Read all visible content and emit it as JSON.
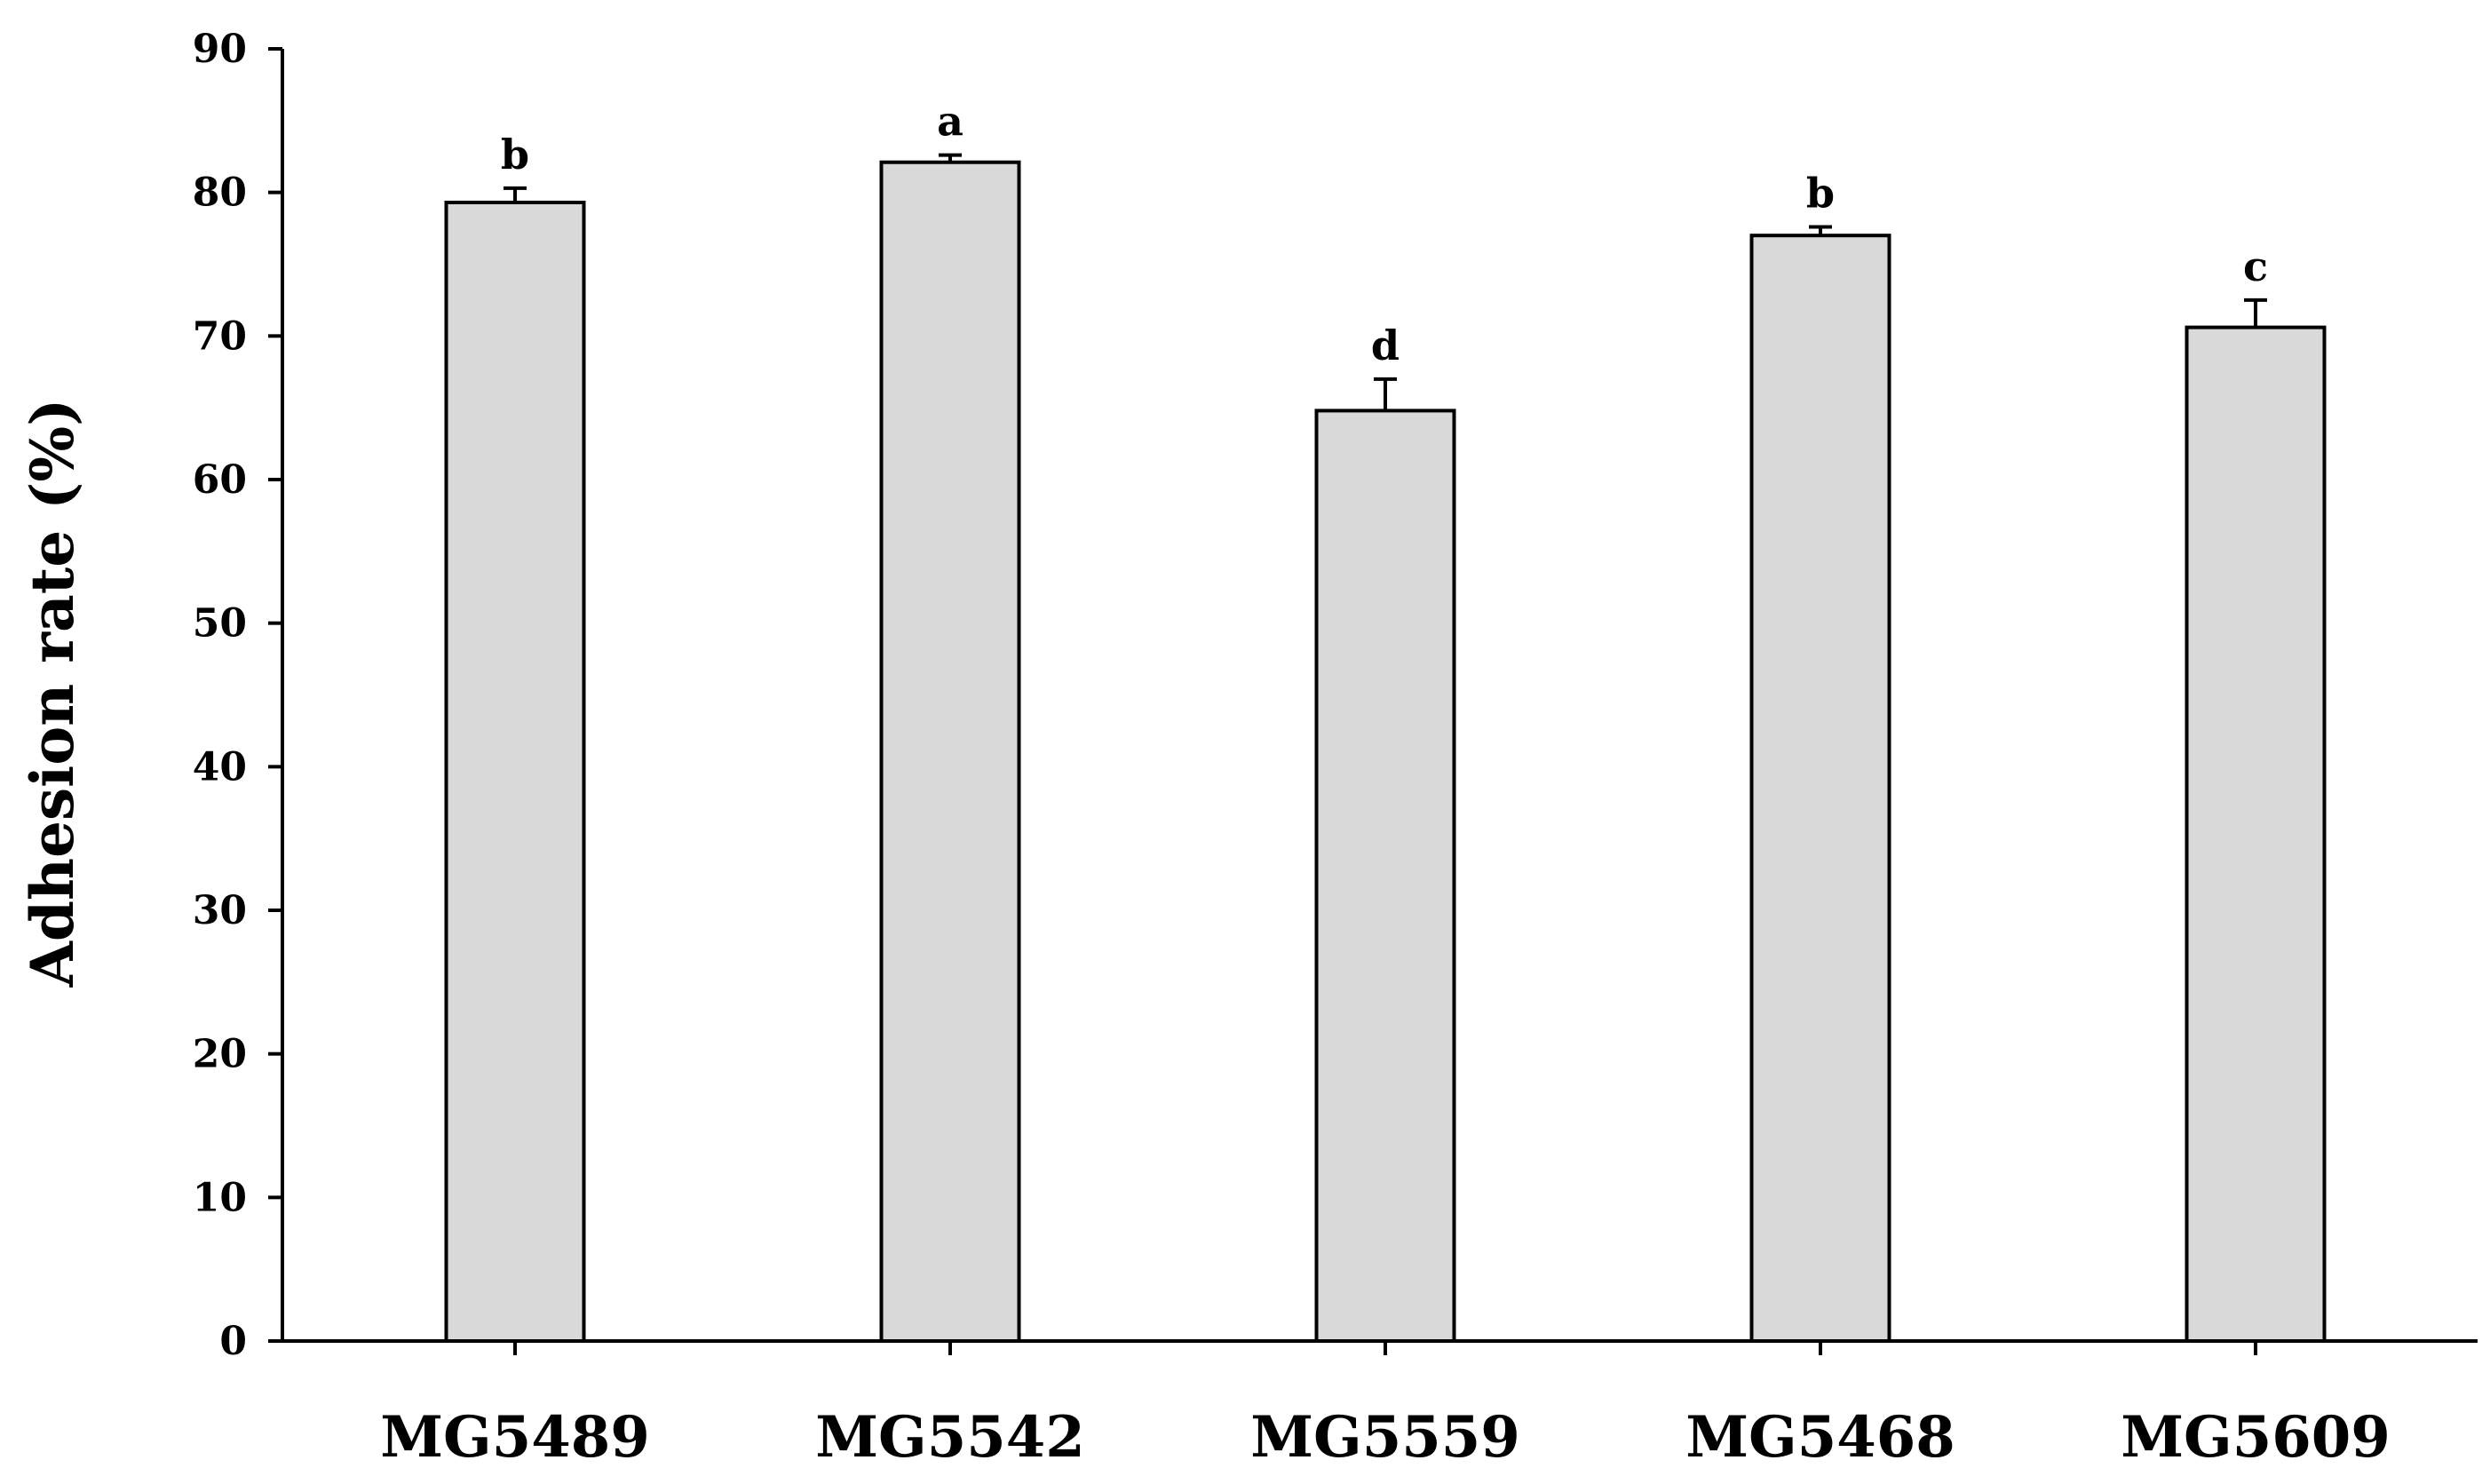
{
  "chart_data": {
    "type": "bar",
    "ylabel": "Adhesion rate (%)",
    "xlabel": "",
    "ylim": [
      0,
      90
    ],
    "yticks": [
      "0",
      "10",
      "20",
      "30",
      "40",
      "50",
      "60",
      "70",
      "80",
      "90"
    ],
    "grid": false,
    "colors": {
      "bar_fill": "#d9d9d9",
      "bar_stroke": "#000000",
      "axis": "#000000"
    },
    "categories": [
      "MG5489",
      "MG5542",
      "MG5559",
      "MG5468",
      "MG5609"
    ],
    "values": [
      79.3,
      82.1,
      64.8,
      77.0,
      70.6
    ],
    "errors": [
      1.0,
      0.5,
      2.2,
      0.6,
      1.9
    ],
    "significance": [
      "b",
      "a",
      "d",
      "b",
      "c"
    ]
  }
}
